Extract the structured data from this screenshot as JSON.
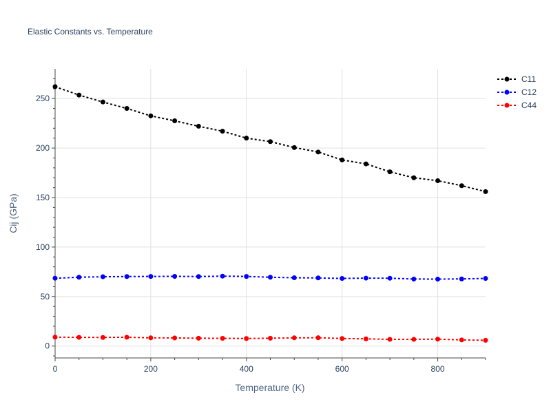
{
  "chart_data": {
    "type": "line",
    "title": "Elastic Constants vs. Temperature",
    "xlabel": "Temperature (K)",
    "ylabel": "Cij (GPa)",
    "xlim": [
      0,
      900
    ],
    "ylim": [
      -12,
      280
    ],
    "x_ticks": [
      0,
      200,
      400,
      600,
      800
    ],
    "y_ticks": [
      0,
      50,
      100,
      150,
      200,
      250
    ],
    "grid": true,
    "legend_position": "top-right",
    "x": [
      0,
      50,
      100,
      150,
      200,
      250,
      300,
      350,
      400,
      450,
      500,
      550,
      600,
      650,
      700,
      750,
      800,
      850,
      900
    ],
    "series": [
      {
        "name": "C11",
        "color": "#000000",
        "values": [
          262,
          253.5,
          246.5,
          240,
          232.5,
          227.5,
          222,
          217,
          210,
          206.5,
          200.5,
          196,
          188,
          184,
          176,
          170,
          167,
          162,
          156
        ]
      },
      {
        "name": "C12",
        "color": "#0000ff",
        "values": [
          68.5,
          69.5,
          70,
          70.2,
          70.3,
          70.4,
          70.2,
          70.6,
          70.3,
          69.5,
          69,
          68.8,
          68.3,
          68.6,
          68.5,
          67.7,
          67.6,
          67.8,
          68.3
        ]
      },
      {
        "name": "C44",
        "color": "#ff0000",
        "values": [
          9,
          8.8,
          8.7,
          8.9,
          8.3,
          8.2,
          7.9,
          7.8,
          7.6,
          7.9,
          8.3,
          8.4,
          7.6,
          7.3,
          6.8,
          6.8,
          7,
          6.2,
          5.8
        ]
      }
    ]
  }
}
